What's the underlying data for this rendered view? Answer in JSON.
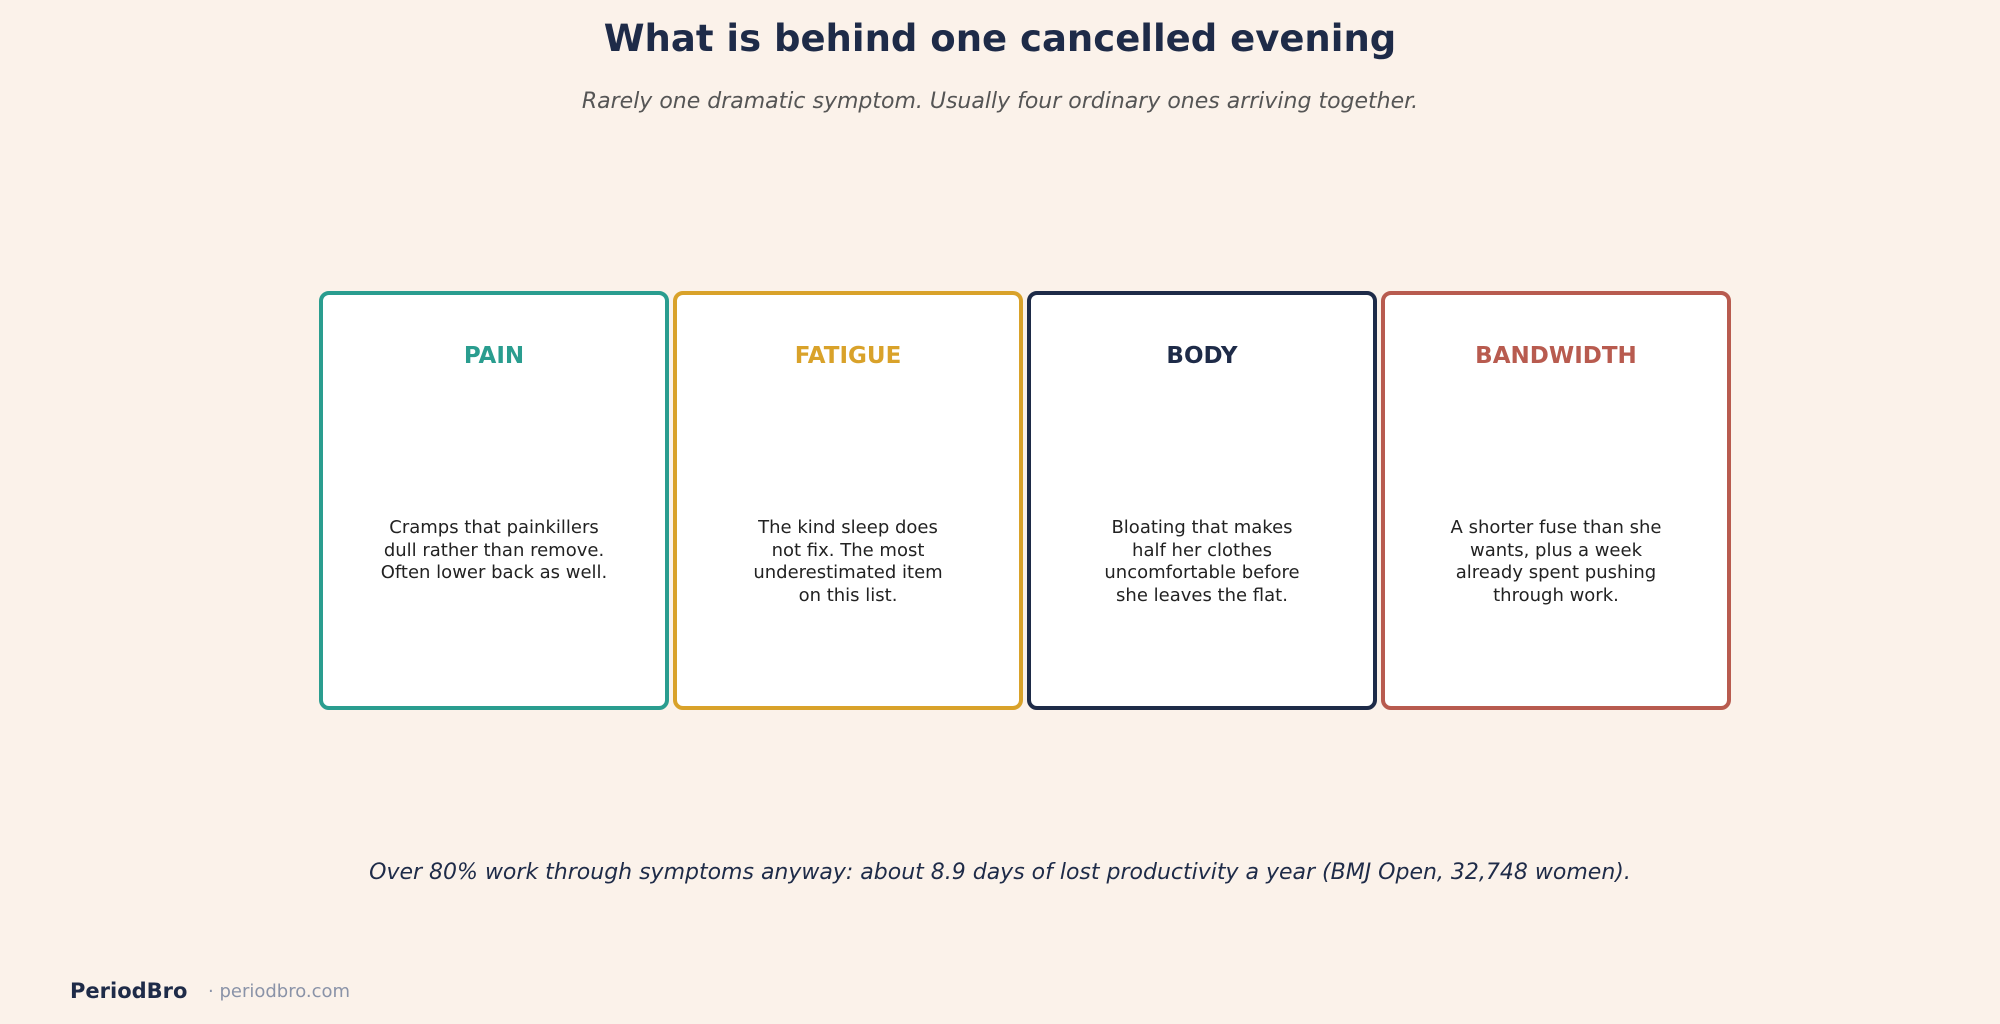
{
  "header": {
    "title": "What is behind one cancelled evening",
    "subtitle": "Rarely one dramatic symptom. Usually four ordinary ones arriving together."
  },
  "cards": [
    {
      "title": "PAIN",
      "body": "Cramps that painkillers dull rather than remove. Often lower back as well.",
      "color": "#2a9d8f"
    },
    {
      "title": "FATIGUE",
      "body": "The kind sleep does not fix. The most underestimated item on this list.",
      "color": "#d9a22a"
    },
    {
      "title": "BODY",
      "body": "Bloating that makes half her clothes uncomfortable before she leaves the flat.",
      "color": "#1e2b48"
    },
    {
      "title": "BANDWIDTH",
      "body": "A shorter fuse than she wants, plus a week already spent pushing through work.",
      "color": "#b85b4f"
    }
  ],
  "footnote": "Over 80% work through symptoms anyway: about 8.9 days of lost productivity a year (BMJ Open, 32,748 women).",
  "footer": {
    "brand": "PeriodBro",
    "url": "· periodbro.com"
  }
}
